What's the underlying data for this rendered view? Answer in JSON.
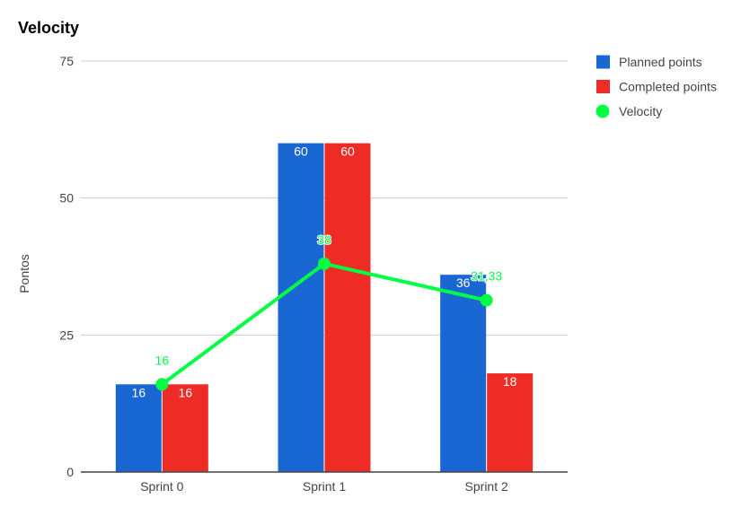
{
  "chart_data": {
    "type": "bar",
    "title": "Velocity",
    "ylabel": "Pontos",
    "xlabel": "",
    "categories": [
      "Sprint 0",
      "Sprint 1",
      "Sprint 2"
    ],
    "ylim": [
      0,
      75
    ],
    "yticks": [
      0,
      25,
      50,
      75
    ],
    "grid": true,
    "legend_position": "right",
    "series": [
      {
        "name": "Planned points",
        "kind": "bar",
        "color": "#1967d2",
        "values": [
          16,
          60,
          36
        ],
        "labels": [
          "16",
          "60",
          "36"
        ]
      },
      {
        "name": "Completed points",
        "kind": "bar",
        "color": "#ee2b24",
        "values": [
          16,
          60,
          18
        ],
        "labels": [
          "16",
          "60",
          "18"
        ]
      },
      {
        "name": "Velocity",
        "kind": "line",
        "color": "#00ff44",
        "values": [
          16,
          38,
          31.33
        ],
        "labels": [
          "16",
          "38",
          "31,33"
        ]
      }
    ]
  }
}
